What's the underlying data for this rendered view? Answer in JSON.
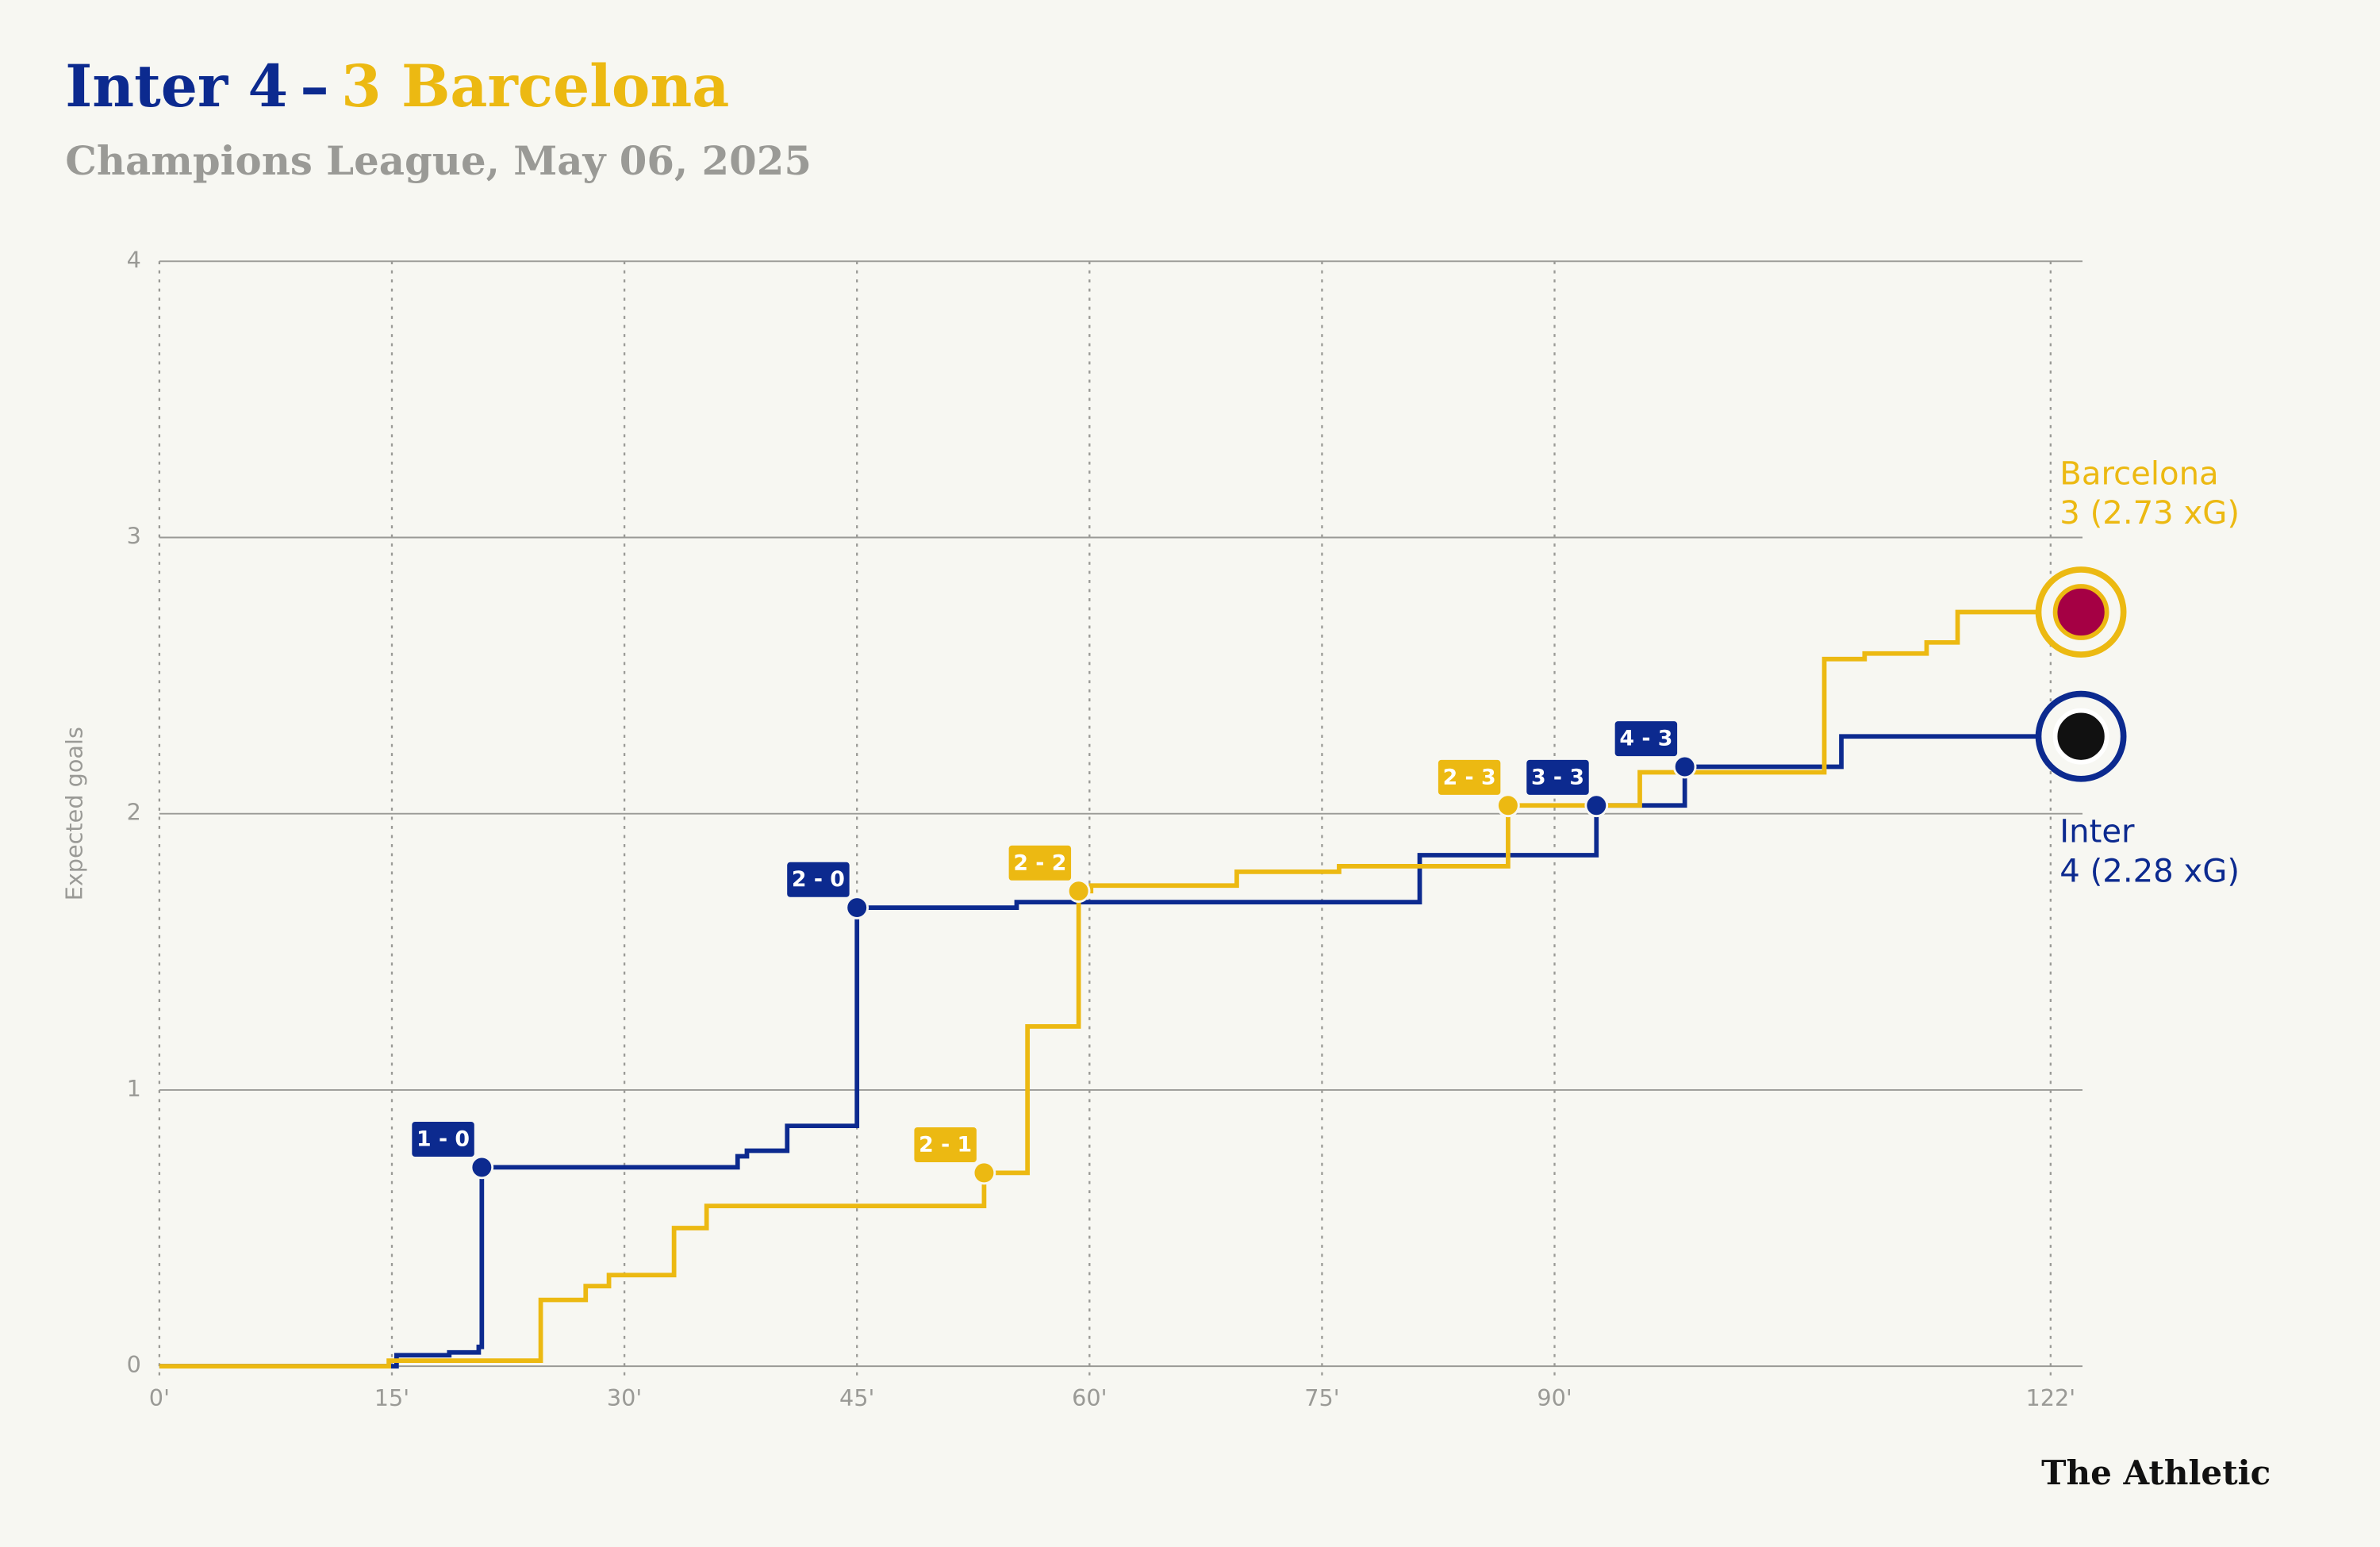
{
  "chart_data": {
    "type": "line",
    "step": true,
    "title": {
      "home": "Inter 4",
      "dash": "–",
      "away": "3 Barcelona"
    },
    "subtitle": "Champions League, May 06, 2025",
    "y_label": "Expected goals",
    "xlim": [
      0,
      122
    ],
    "ylim": [
      0,
      4
    ],
    "xticks": [
      {
        "value": 0,
        "label": "0'"
      },
      {
        "value": 15,
        "label": "15'"
      },
      {
        "value": 30,
        "label": "30'"
      },
      {
        "value": 45,
        "label": "45'"
      },
      {
        "value": 60,
        "label": "60'"
      },
      {
        "value": 75,
        "label": "75'"
      },
      {
        "value": 90,
        "label": "90'"
      },
      {
        "value": 122,
        "label": "122'"
      }
    ],
    "yticks": [
      0,
      1,
      2,
      3,
      4
    ],
    "grid": true,
    "series": [
      {
        "name": "Inter",
        "summary": "4 (2.28 xG)",
        "color": "#0c2a8f",
        "x": [
          0,
          15.3,
          18.7,
          20.6,
          20.8,
          37.3,
          37.9,
          40.5,
          45,
          55.3,
          81.3,
          92.7,
          98.4,
          108.5,
          122
        ],
        "values": [
          0,
          0.04,
          0.05,
          0.07,
          0.72,
          0.76,
          0.78,
          0.87,
          1.66,
          1.68,
          1.85,
          2.03,
          2.17,
          2.28,
          2.28
        ]
      },
      {
        "name": "Barcelona",
        "summary": "3 (2.73 xG)",
        "color": "#ecb912",
        "x": [
          0,
          14.8,
          24.6,
          27.5,
          29,
          33.2,
          35.3,
          53.2,
          56,
          59.3,
          60.1,
          69.5,
          76.1,
          87,
          95.5,
          107.4,
          110,
          114,
          116,
          122
        ],
        "values": [
          0,
          0.02,
          0.24,
          0.29,
          0.33,
          0.5,
          0.58,
          0.7,
          1.23,
          1.72,
          1.74,
          1.79,
          1.81,
          2.03,
          2.15,
          2.56,
          2.58,
          2.62,
          2.73,
          2.73
        ]
      }
    ],
    "goals": [
      {
        "label": "1 - 0",
        "series": 0,
        "x": 20.8,
        "y": 0.72
      },
      {
        "label": "2 - 0",
        "series": 0,
        "x": 45,
        "y": 1.66
      },
      {
        "label": "2 - 1",
        "series": 1,
        "x": 53.2,
        "y": 0.7
      },
      {
        "label": "2 - 2",
        "series": 1,
        "x": 59.3,
        "y": 1.72
      },
      {
        "label": "2 - 3",
        "series": 1,
        "x": 87,
        "y": 2.03
      },
      {
        "label": "3 - 3",
        "series": 0,
        "x": 92.7,
        "y": 2.03
      },
      {
        "label": "4 - 3",
        "series": 0,
        "x": 98.4,
        "y": 2.17
      }
    ],
    "source": "The Athletic"
  }
}
